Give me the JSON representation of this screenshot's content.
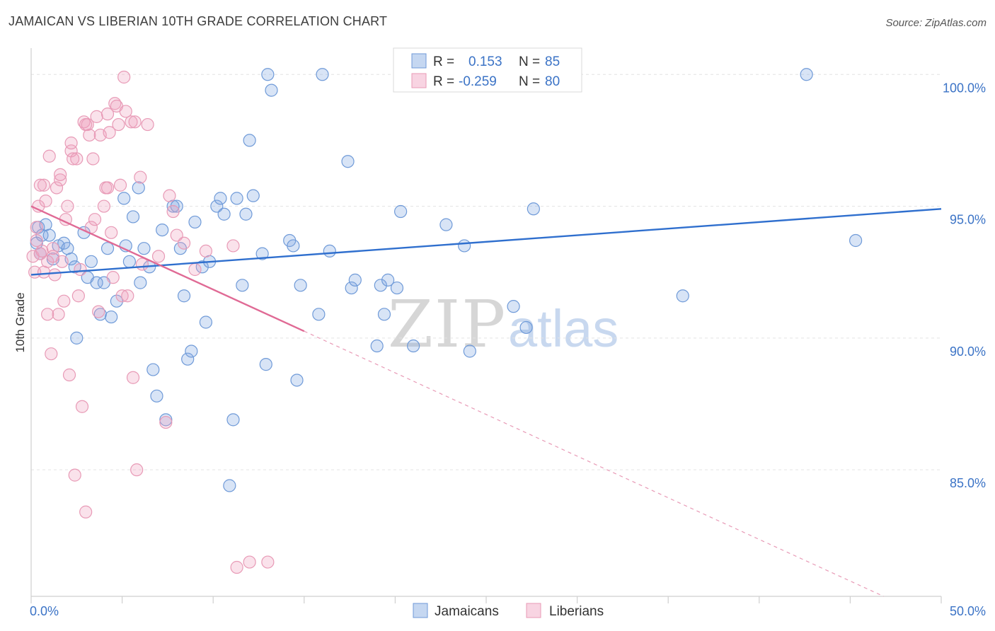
{
  "title": "JAMAICAN VS LIBERIAN 10TH GRADE CORRELATION CHART",
  "source": "Source: ZipAtlas.com",
  "watermark": {
    "zip": "ZIP",
    "atlas": "atlas"
  },
  "legend": {
    "rows": [
      {
        "r_label": "R = ",
        "r_value": "0.153",
        "n_label": "N = ",
        "n_value": "85",
        "color": "#7ea6e0"
      },
      {
        "r_label": "R = ",
        "r_value": "-0.259",
        "n_label": "N = ",
        "n_value": "80",
        "color": "#f0a0be"
      }
    ]
  },
  "chart_data": {
    "type": "scatter",
    "title": "JAMAICAN VS LIBERIAN 10TH GRADE CORRELATION CHART",
    "xlabel": "",
    "ylabel": "10th Grade",
    "xlim": [
      0,
      50
    ],
    "ylim": [
      80.2,
      101.0
    ],
    "x_tick_labels": [
      {
        "value": 0,
        "label": "0.0%"
      },
      {
        "value": 50,
        "label": "50.0%"
      }
    ],
    "y_tick_labels": [
      {
        "value": 100,
        "label": "100.0%"
      },
      {
        "value": 95,
        "label": "95.0%"
      },
      {
        "value": 90,
        "label": "90.0%"
      },
      {
        "value": 85,
        "label": "85.0%"
      }
    ],
    "grid": true,
    "legend_position": "top-center",
    "series": [
      {
        "name": "Jamaicans",
        "color": "#7ea6e0",
        "line_color": "#2f6fce",
        "trend": {
          "x0": 0,
          "y0": 92.4,
          "x1": 50,
          "y1": 94.9,
          "dashed_from": null
        },
        "points": [
          [
            0.3,
            93.6
          ],
          [
            0.4,
            94.2
          ],
          [
            0.5,
            93.2
          ],
          [
            0.6,
            93.9
          ],
          [
            0.8,
            94.3
          ],
          [
            1.0,
            93.9
          ],
          [
            1.2,
            93.0
          ],
          [
            1.5,
            93.5
          ],
          [
            1.8,
            93.6
          ],
          [
            2.0,
            93.4
          ],
          [
            2.2,
            93.0
          ],
          [
            2.4,
            92.7
          ],
          [
            2.5,
            90.0
          ],
          [
            2.9,
            94.0
          ],
          [
            3.1,
            92.3
          ],
          [
            3.3,
            92.9
          ],
          [
            3.6,
            92.1
          ],
          [
            3.8,
            90.9
          ],
          [
            4.0,
            92.1
          ],
          [
            4.2,
            93.4
          ],
          [
            4.4,
            90.8
          ],
          [
            4.7,
            91.4
          ],
          [
            5.1,
            95.3
          ],
          [
            5.2,
            93.5
          ],
          [
            5.4,
            92.9
          ],
          [
            5.6,
            94.6
          ],
          [
            5.9,
            95.7
          ],
          [
            6.0,
            92.1
          ],
          [
            6.2,
            93.4
          ],
          [
            6.5,
            92.7
          ],
          [
            6.7,
            88.8
          ],
          [
            6.9,
            87.8
          ],
          [
            7.2,
            94.1
          ],
          [
            7.4,
            86.9
          ],
          [
            7.8,
            95.0
          ],
          [
            8.0,
            95.0
          ],
          [
            8.2,
            93.4
          ],
          [
            8.4,
            91.6
          ],
          [
            8.6,
            89.2
          ],
          [
            8.8,
            89.5
          ],
          [
            9.0,
            94.4
          ],
          [
            9.4,
            92.7
          ],
          [
            9.6,
            90.6
          ],
          [
            9.8,
            92.9
          ],
          [
            10.2,
            95.0
          ],
          [
            10.4,
            95.3
          ],
          [
            10.6,
            94.7
          ],
          [
            10.9,
            84.4
          ],
          [
            11.1,
            86.9
          ],
          [
            11.3,
            95.3
          ],
          [
            11.6,
            92.0
          ],
          [
            11.8,
            94.7
          ],
          [
            12.0,
            97.5
          ],
          [
            12.2,
            95.4
          ],
          [
            12.7,
            93.2
          ],
          [
            12.9,
            89.0
          ],
          [
            13.0,
            100.0
          ],
          [
            13.2,
            99.4
          ],
          [
            14.2,
            93.7
          ],
          [
            14.4,
            93.5
          ],
          [
            14.6,
            88.4
          ],
          [
            14.8,
            92.0
          ],
          [
            15.8,
            90.9
          ],
          [
            16.0,
            100.0
          ],
          [
            16.4,
            93.3
          ],
          [
            17.4,
            96.7
          ],
          [
            17.6,
            91.9
          ],
          [
            17.8,
            92.2
          ],
          [
            19.0,
            89.7
          ],
          [
            19.2,
            92.0
          ],
          [
            19.4,
            90.9
          ],
          [
            19.6,
            92.2
          ],
          [
            20.1,
            91.9
          ],
          [
            20.3,
            94.8
          ],
          [
            21.0,
            89.7
          ],
          [
            22.8,
            94.3
          ],
          [
            23.8,
            93.5
          ],
          [
            24.1,
            89.5
          ],
          [
            26.5,
            91.2
          ],
          [
            27.2,
            90.4
          ],
          [
            27.6,
            94.9
          ],
          [
            35.8,
            91.6
          ],
          [
            42.6,
            100.0
          ],
          [
            45.3,
            93.7
          ],
          [
            27.0,
            100.0
          ]
        ]
      },
      {
        "name": "Liberians",
        "color": "#f0a0be",
        "line_color": "#e06a95",
        "trend": {
          "x0": 0,
          "y0": 95.0,
          "x1": 50,
          "y1": 79.2,
          "solid_until": 15
        },
        "points": [
          [
            0.1,
            93.1
          ],
          [
            0.2,
            92.5
          ],
          [
            0.3,
            93.7
          ],
          [
            0.4,
            95.0
          ],
          [
            0.5,
            93.2
          ],
          [
            0.6,
            93.3
          ],
          [
            0.7,
            95.8
          ],
          [
            0.8,
            95.2
          ],
          [
            0.9,
            90.9
          ],
          [
            1.0,
            96.9
          ],
          [
            1.1,
            89.4
          ],
          [
            1.2,
            93.4
          ],
          [
            1.3,
            92.4
          ],
          [
            1.4,
            95.7
          ],
          [
            1.5,
            90.9
          ],
          [
            1.6,
            96.0
          ],
          [
            1.7,
            92.9
          ],
          [
            1.8,
            91.4
          ],
          [
            1.9,
            94.5
          ],
          [
            2.0,
            95.0
          ],
          [
            2.1,
            88.6
          ],
          [
            2.2,
            97.1
          ],
          [
            2.3,
            96.8
          ],
          [
            2.4,
            84.8
          ],
          [
            2.5,
            96.8
          ],
          [
            2.6,
            91.6
          ],
          [
            2.7,
            92.6
          ],
          [
            2.8,
            87.4
          ],
          [
            2.9,
            98.2
          ],
          [
            3.0,
            83.4
          ],
          [
            3.1,
            98.1
          ],
          [
            3.2,
            97.7
          ],
          [
            3.3,
            94.2
          ],
          [
            3.4,
            96.8
          ],
          [
            3.5,
            94.5
          ],
          [
            3.6,
            98.4
          ],
          [
            3.7,
            91.0
          ],
          [
            3.8,
            97.7
          ],
          [
            4.0,
            95.0
          ],
          [
            4.1,
            95.7
          ],
          [
            4.2,
            98.5
          ],
          [
            4.3,
            97.8
          ],
          [
            4.4,
            94.0
          ],
          [
            4.5,
            92.3
          ],
          [
            4.6,
            98.9
          ],
          [
            4.7,
            98.8
          ],
          [
            4.8,
            98.1
          ],
          [
            4.9,
            95.8
          ],
          [
            5.0,
            91.6
          ],
          [
            5.1,
            99.9
          ],
          [
            5.2,
            98.6
          ],
          [
            5.3,
            91.6
          ],
          [
            5.5,
            98.2
          ],
          [
            5.6,
            88.5
          ],
          [
            5.7,
            98.2
          ],
          [
            5.8,
            85.0
          ],
          [
            6.0,
            96.1
          ],
          [
            6.1,
            92.8
          ],
          [
            6.4,
            98.1
          ],
          [
            7.0,
            93.1
          ],
          [
            7.4,
            86.8
          ],
          [
            7.6,
            95.4
          ],
          [
            7.8,
            94.8
          ],
          [
            8.0,
            93.9
          ],
          [
            8.4,
            93.6
          ],
          [
            9.0,
            92.6
          ],
          [
            9.6,
            93.3
          ],
          [
            11.1,
            93.5
          ],
          [
            11.3,
            81.3
          ],
          [
            12.0,
            81.5
          ],
          [
            13.0,
            81.5
          ],
          [
            0.5,
            95.8
          ],
          [
            0.9,
            92.9
          ],
          [
            1.6,
            96.2
          ],
          [
            2.2,
            97.4
          ],
          [
            3.0,
            98.1
          ],
          [
            4.2,
            95.7
          ],
          [
            0.3,
            94.2
          ],
          [
            1.2,
            93.1
          ],
          [
            0.7,
            92.5
          ]
        ]
      }
    ]
  },
  "bottom_legend": [
    {
      "label": "Jamaicans",
      "color": "#7ea6e0"
    },
    {
      "label": "Liberians",
      "color": "#f0a0be"
    }
  ]
}
